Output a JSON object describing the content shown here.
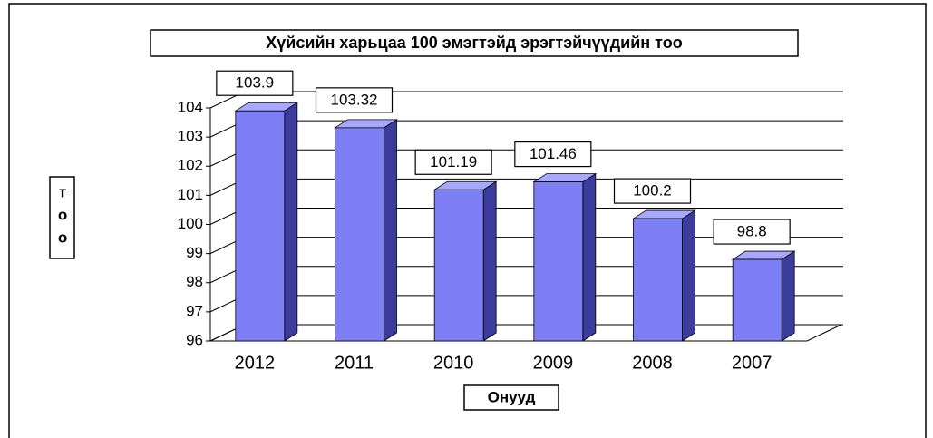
{
  "chart_data": {
    "type": "bar3d",
    "title": "Хүйсийн харьцаа 100 эмэгтэйд эрэгтэйчүүдийн тоо",
    "x_label": "Онууд",
    "y_label": "тоо",
    "categories": [
      "2012",
      "2011",
      "2010",
      "2009",
      "2008",
      "2007"
    ],
    "values": [
      103.9,
      103.32,
      101.19,
      101.46,
      100.2,
      98.8
    ],
    "color": "#7f7ff5",
    "ylim": [
      96,
      104
    ],
    "yticks": [
      96,
      97,
      98,
      99,
      100,
      101,
      102,
      103,
      104
    ],
    "grid": true
  }
}
